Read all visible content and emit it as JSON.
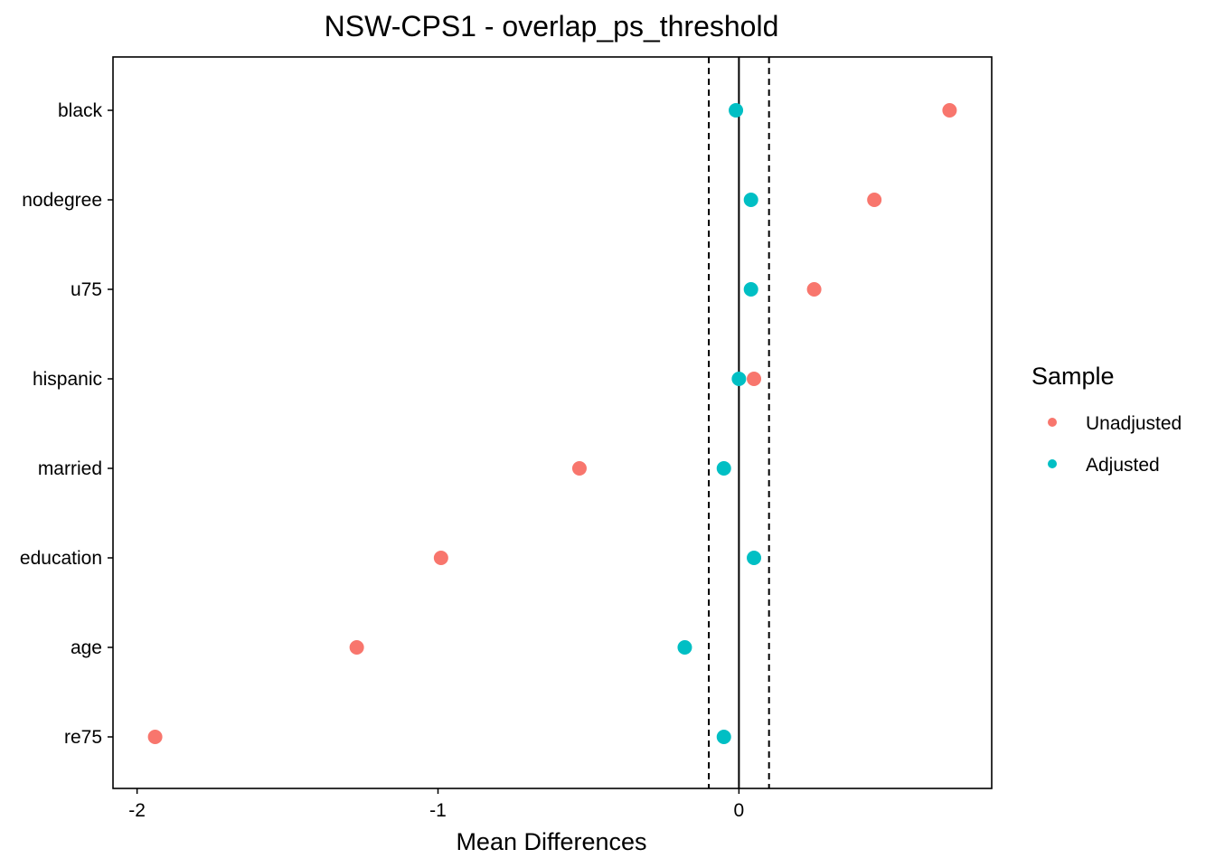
{
  "chart_data": {
    "type": "scatter",
    "title": "NSW-CPS1 - overlap_ps_threshold",
    "xlabel": "Mean Differences",
    "ylabel": "",
    "xlim": [
      -2.08,
      0.84
    ],
    "x_ticks": [
      -2,
      -1,
      0
    ],
    "x_tick_labels": [
      "-2",
      "-1",
      "0"
    ],
    "categories": [
      "black",
      "nodegree",
      "u75",
      "hispanic",
      "married",
      "education",
      "age",
      "re75"
    ],
    "reference_lines": {
      "solid": 0,
      "dashed": [
        -0.1,
        0.1
      ]
    },
    "legend": {
      "title": "Sample",
      "position": "right"
    },
    "series": [
      {
        "name": "Unadjusted",
        "color": "#F8766D",
        "values": [
          0.7,
          0.45,
          0.25,
          0.05,
          -0.53,
          -0.99,
          -1.27,
          -1.94
        ]
      },
      {
        "name": "Adjusted",
        "color": "#00BFC4",
        "values": [
          -0.01,
          0.04,
          0.04,
          0.0,
          -0.05,
          0.05,
          -0.18,
          -0.05
        ]
      }
    ],
    "grid": false
  }
}
